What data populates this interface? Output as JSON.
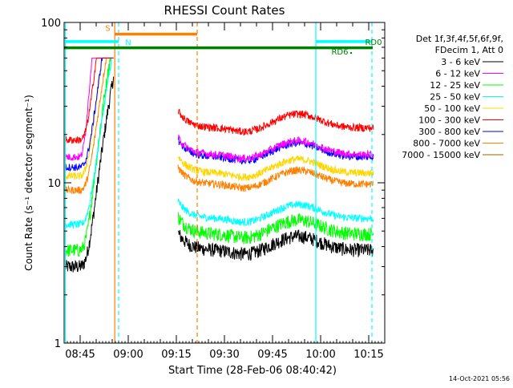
{
  "chart_data": {
    "type": "line",
    "title": "RHESSI Count Rates",
    "xlabel": "Start Time (28-Feb-06 08:40:42)",
    "ylabel": "Count Rate (s⁻¹ detector segment⁻¹)",
    "yscale": "log",
    "ylim": [
      1,
      100
    ],
    "xlim_minutes_after_0840": [
      0,
      100
    ],
    "x_ticks": [
      "08:45",
      "09:00",
      "09:15",
      "09:30",
      "09:45",
      "10:00",
      "10:15"
    ],
    "y_ticks": [
      "1",
      "10",
      "100"
    ],
    "grid": false,
    "legend_position": "right",
    "legend_header": [
      "Det 1f,3f,4f,5f,6f,9f,",
      "FDecim 1, Att 0"
    ],
    "timestamp": "14-Oct-2021 05:56",
    "attributes": {
      "night_N": {
        "label": "N",
        "color": "#00ffff"
      },
      "saa_S": {
        "label": "S",
        "color": "#ff8000"
      },
      "rd6": {
        "label": "RD6",
        "color": "#008000"
      },
      "rd0": {
        "label": "RD0",
        "color": "#008000"
      }
    },
    "series": [
      {
        "name": "3 - 6 keV",
        "color": "#000000",
        "pre": 3.0,
        "post": 3.8
      },
      {
        "name": "6 - 12 keV",
        "color": "#ff00ff",
        "pre": 14.5,
        "post": 15.0
      },
      {
        "name": "12 - 25 keV",
        "color": "#00ff00",
        "pre": 3.8,
        "post": 4.8
      },
      {
        "name": "25 - 50 keV",
        "color": "#00ffff",
        "pre": 5.5,
        "post": 6.0
      },
      {
        "name": "50 - 100 keV",
        "color": "#ffd700",
        "pre": 11.0,
        "post": 11.5
      },
      {
        "name": "100 - 300 keV",
        "color": "#ff0000",
        "pre": 18.5,
        "post": 22.0
      },
      {
        "name": "300 - 800 keV",
        "color": "#0000ff",
        "pre": 12.5,
        "post": 14.5
      },
      {
        "name": "800 - 7000 keV",
        "color": "#ff8000",
        "pre": 9.0,
        "post": 9.8
      },
      {
        "name": "7000 - 15000 keV",
        "color": "#996600",
        "pre": null,
        "post": null
      }
    ]
  }
}
